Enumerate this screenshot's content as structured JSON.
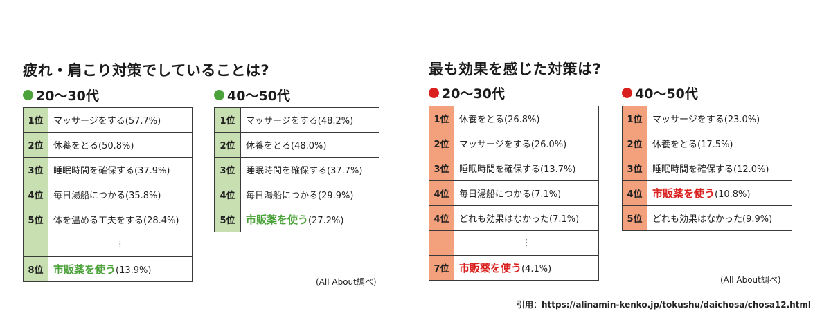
{
  "colors": {
    "green": "#4ca23a",
    "green_bg": "#c8dfb2",
    "red": "#d9201e",
    "red_bg": "#f3a07c"
  },
  "left": {
    "title": "疲れ・肩こり対策でしていることは?",
    "groups": [
      {
        "label": "20〜30代",
        "rows": [
          {
            "rank": "1位",
            "item": "マッサージをする",
            "pct": "(57.7%)"
          },
          {
            "rank": "2位",
            "item": "休養をとる",
            "pct": "(50.8%)"
          },
          {
            "rank": "3位",
            "item": "睡眠時間を確保する",
            "pct": "(37.9%)"
          },
          {
            "rank": "4位",
            "item": "毎日湯船につかる",
            "pct": "(35.8%)"
          },
          {
            "rank": "5位",
            "item": "体を温める工夫をする",
            "pct": "(28.4%)"
          }
        ],
        "ellipsis": "⋮",
        "last": {
          "rank": "8位",
          "item": "市販薬を使う",
          "pct": "(13.9%)"
        }
      },
      {
        "label": "40〜50代",
        "rows": [
          {
            "rank": "1位",
            "item": "マッサージをする",
            "pct": "(48.2%)"
          },
          {
            "rank": "2位",
            "item": "休養をとる",
            "pct": "(48.0%)"
          },
          {
            "rank": "3位",
            "item": "睡眠時間を確保する",
            "pct": "(37.7%)"
          },
          {
            "rank": "4位",
            "item": "毎日湯船につかる",
            "pct": "(29.9%)"
          },
          {
            "rank": "5位",
            "item": "市販薬を使う",
            "pct": "(27.2%)"
          }
        ]
      }
    ],
    "source": "(All About調べ)"
  },
  "right": {
    "title": "最も効果を感じた対策は?",
    "groups": [
      {
        "label": "20〜30代",
        "rows": [
          {
            "rank": "1位",
            "item": "休養をとる",
            "pct": "(26.8%)"
          },
          {
            "rank": "2位",
            "item": "マッサージをする",
            "pct": "(26.0%)"
          },
          {
            "rank": "3位",
            "item": "睡眠時間を確保する",
            "pct": "(13.7%)"
          },
          {
            "rank": "4位",
            "item": "毎日湯船につかる",
            "pct": "(7.1%)"
          },
          {
            "rank": "4位",
            "item": "どれも効果はなかった",
            "pct": "(7.1%)"
          }
        ],
        "ellipsis": "⋮",
        "last": {
          "rank": "7位",
          "item": "市販薬を使う",
          "pct": "(4.1%)"
        }
      },
      {
        "label": "40〜50代",
        "rows": [
          {
            "rank": "1位",
            "item": "マッサージをする",
            "pct": "(23.0%)"
          },
          {
            "rank": "2位",
            "item": "休養をとる",
            "pct": "(17.5%)"
          },
          {
            "rank": "3位",
            "item": "睡眠時間を確保する",
            "pct": "(12.0%)"
          },
          {
            "rank": "4位",
            "item": "市販薬を使う",
            "pct": "(10.8%)"
          },
          {
            "rank": "5位",
            "item": "どれも効果はなかった",
            "pct": "(9.9%)"
          }
        ]
      }
    ],
    "source": "(All About調べ)"
  },
  "citation": "引用：https://alinamin-kenko.jp/tokushu/daichosa/chosa12.html"
}
